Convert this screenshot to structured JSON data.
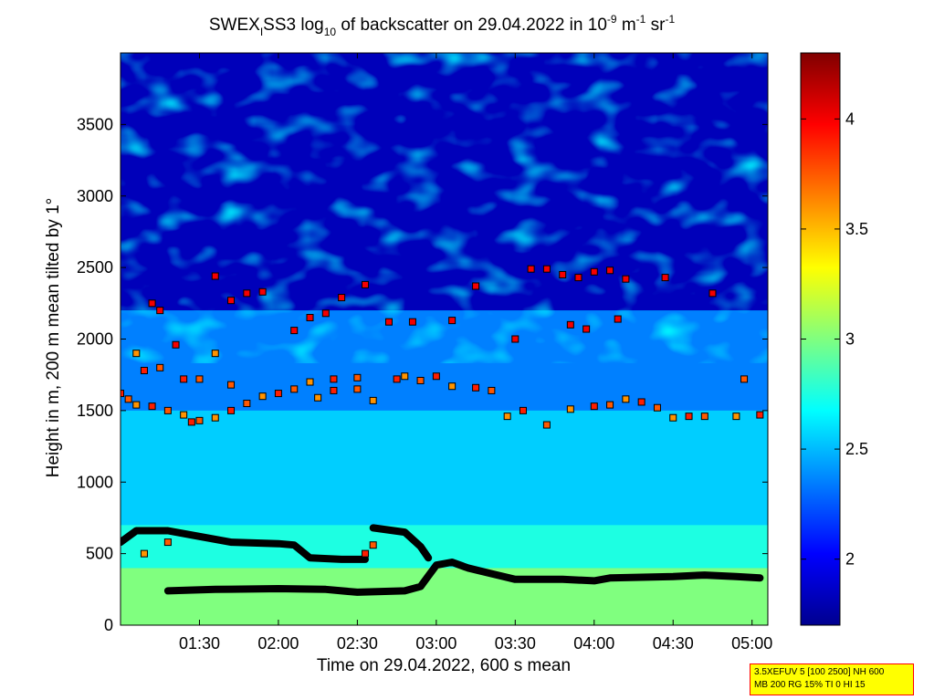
{
  "chart_data": {
    "type": "heatmap",
    "title": {
      "prefix": "SWEX",
      "sub": "I",
      "mid": "SS3 log",
      "log_sub": "10",
      "rest": " of backscatter on 29.04.2022 in 10",
      "exp1": "-9",
      "unit1": " m",
      "exp2": "-1",
      "unit2": " sr",
      "exp3": "-1"
    },
    "xlabel": "Time on 29.04.2022, 600 s mean",
    "ylabel": "Height in m, 200 m mean tilted by 1°",
    "xlim": [
      1.0,
      5.1
    ],
    "ylim": [
      0,
      4000
    ],
    "x_ticks": [
      {
        "value": 1.5,
        "label": "01:30"
      },
      {
        "value": 2.0,
        "label": "02:00"
      },
      {
        "value": 2.5,
        "label": "02:30"
      },
      {
        "value": 3.0,
        "label": "03:00"
      },
      {
        "value": 3.5,
        "label": "03:30"
      },
      {
        "value": 4.0,
        "label": "04:00"
      },
      {
        "value": 4.5,
        "label": "04:30"
      },
      {
        "value": 5.0,
        "label": "05:00"
      }
    ],
    "y_ticks": [
      {
        "value": 0,
        "label": "0"
      },
      {
        "value": 500,
        "label": "500"
      },
      {
        "value": 1000,
        "label": "1000"
      },
      {
        "value": 1500,
        "label": "1500"
      },
      {
        "value": 2000,
        "label": "2000"
      },
      {
        "value": 2500,
        "label": "2500"
      },
      {
        "value": 3000,
        "label": "3000"
      },
      {
        "value": 3500,
        "label": "3500"
      }
    ],
    "colorbar": {
      "range": [
        1.7,
        4.3
      ],
      "ticks": [
        {
          "value": 2.0,
          "label": "2"
        },
        {
          "value": 2.5,
          "label": "2.5"
        },
        {
          "value": 3.0,
          "label": "3"
        },
        {
          "value": 3.5,
          "label": "3.5"
        },
        {
          "value": 4.0,
          "label": "4"
        }
      ],
      "colormap": "jet"
    },
    "layers": [
      {
        "height_top": 400,
        "value": 3.0
      },
      {
        "height_top": 700,
        "value": 2.75
      },
      {
        "height_top": 1500,
        "value": 2.55
      },
      {
        "height_top": 2200,
        "value": 2.35
      },
      {
        "height_top": 4000,
        "value": 1.85
      }
    ],
    "mixing_layer_line": [
      [
        1.3,
        240
      ],
      [
        1.6,
        250
      ],
      [
        2.0,
        255
      ],
      [
        2.3,
        250
      ],
      [
        2.5,
        230
      ],
      [
        2.8,
        240
      ],
      [
        2.9,
        270
      ],
      [
        3.0,
        420
      ],
      [
        3.1,
        440
      ],
      [
        3.2,
        400
      ],
      [
        3.35,
        360
      ],
      [
        3.5,
        320
      ],
      [
        3.8,
        320
      ],
      [
        4.0,
        310
      ],
      [
        4.1,
        330
      ],
      [
        4.5,
        340
      ],
      [
        4.7,
        350
      ],
      [
        4.9,
        340
      ],
      [
        5.05,
        330
      ]
    ],
    "upper_layer_line": [
      [
        1.0,
        580
      ],
      [
        1.1,
        660
      ],
      [
        1.3,
        660
      ],
      [
        1.5,
        620
      ],
      [
        1.7,
        580
      ],
      [
        2.0,
        570
      ],
      [
        2.1,
        560
      ],
      [
        2.2,
        470
      ],
      [
        2.4,
        460
      ],
      [
        2.55,
        460
      ]
    ],
    "upper_layer_line_2": [
      [
        2.6,
        680
      ],
      [
        2.8,
        650
      ],
      [
        2.9,
        550
      ],
      [
        2.95,
        470
      ]
    ],
    "cloud_points": [
      [
        1.0,
        1620
      ],
      [
        1.05,
        1580
      ],
      [
        1.1,
        1540
      ],
      [
        1.2,
        1530
      ],
      [
        1.3,
        1500
      ],
      [
        1.4,
        1470
      ],
      [
        1.45,
        1420
      ],
      [
        1.5,
        1430
      ],
      [
        1.6,
        1450
      ],
      [
        1.7,
        1500
      ],
      [
        1.8,
        1550
      ],
      [
        1.9,
        1600
      ],
      [
        2.0,
        1620
      ],
      [
        2.1,
        1650
      ],
      [
        2.2,
        1700
      ],
      [
        2.35,
        1720
      ],
      [
        2.5,
        1650
      ],
      [
        2.6,
        1570
      ],
      [
        2.75,
        1720
      ],
      [
        2.9,
        1710
      ],
      [
        3.1,
        1670
      ],
      [
        3.25,
        1660
      ],
      [
        3.35,
        1640
      ],
      [
        3.45,
        1460
      ],
      [
        3.55,
        1500
      ],
      [
        3.7,
        1400
      ],
      [
        3.85,
        1510
      ],
      [
        4.0,
        1530
      ],
      [
        4.1,
        1540
      ],
      [
        4.2,
        1580
      ],
      [
        4.3,
        1560
      ],
      [
        4.4,
        1520
      ],
      [
        4.5,
        1450
      ],
      [
        4.6,
        1460
      ],
      [
        4.7,
        1460
      ],
      [
        4.9,
        1460
      ],
      [
        5.05,
        1470
      ],
      [
        4.95,
        1720
      ],
      [
        1.1,
        1900
      ],
      [
        1.15,
        1780
      ],
      [
        1.25,
        1800
      ],
      [
        1.35,
        1960
      ],
      [
        1.4,
        1720
      ],
      [
        1.5,
        1720
      ],
      [
        1.6,
        1900
      ],
      [
        1.2,
        2250
      ],
      [
        1.25,
        2200
      ],
      [
        1.6,
        2440
      ],
      [
        1.7,
        2270
      ],
      [
        1.8,
        2320
      ],
      [
        1.9,
        2330
      ],
      [
        2.1,
        2060
      ],
      [
        2.2,
        2150
      ],
      [
        2.3,
        2180
      ],
      [
        2.4,
        2290
      ],
      [
        2.55,
        2380
      ],
      [
        2.7,
        2120
      ],
      [
        2.85,
        2120
      ],
      [
        3.1,
        2130
      ],
      [
        3.25,
        2370
      ],
      [
        3.5,
        2000
      ],
      [
        3.6,
        2490
      ],
      [
        3.7,
        2490
      ],
      [
        3.8,
        2450
      ],
      [
        3.9,
        2430
      ],
      [
        4.0,
        2470
      ],
      [
        4.1,
        2480
      ],
      [
        4.2,
        2420
      ],
      [
        4.45,
        2430
      ],
      [
        4.75,
        2320
      ],
      [
        3.85,
        2100
      ],
      [
        3.95,
        2070
      ],
      [
        4.15,
        2140
      ],
      [
        1.7,
        1680
      ],
      [
        2.25,
        1590
      ],
      [
        2.35,
        1640
      ],
      [
        2.5,
        1730
      ],
      [
        2.8,
        1740
      ],
      [
        3.0,
        1740
      ],
      [
        1.3,
        580
      ],
      [
        1.15,
        500
      ],
      [
        2.55,
        500
      ],
      [
        2.6,
        560
      ]
    ]
  },
  "info_box": {
    "line1": "3.5XEFUV 5 [100 2500] NH 600",
    "line2": "MB 200 RG 15% TI 0 HI 15"
  }
}
